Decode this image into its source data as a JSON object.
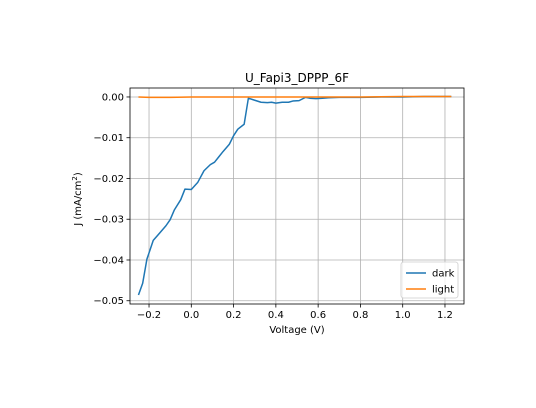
{
  "chart_data": {
    "type": "line",
    "title": "U_Fapi3_DPPP_6F",
    "xlabel": "Voltage (V)",
    "ylabel_main": "J (mA/cm",
    "ylabel_sup": "2",
    "ylabel_end": ")",
    "xlim": [
      -0.29,
      1.29
    ],
    "ylim": [
      -0.0508,
      0.0022
    ],
    "x_ticks": [
      -0.2,
      0.0,
      0.2,
      0.4,
      0.6,
      0.8,
      1.0,
      1.2
    ],
    "x_tick_labels": [
      "−0.2",
      "0.0",
      "0.2",
      "0.4",
      "0.6",
      "0.8",
      "1.0",
      "1.2"
    ],
    "y_ticks": [
      0.0,
      -0.01,
      -0.02,
      -0.03,
      -0.04,
      -0.05
    ],
    "y_tick_labels": [
      "0.00",
      "−0.01",
      "−0.02",
      "−0.03",
      "−0.04",
      "−0.05"
    ],
    "grid": true,
    "legend_position": "bottom-right",
    "series": [
      {
        "name": "dark",
        "color": "#1f77b4",
        "points": [
          [
            -0.25,
            -0.0486
          ],
          [
            -0.23,
            -0.0457
          ],
          [
            -0.21,
            -0.0398
          ],
          [
            -0.18,
            -0.0352
          ],
          [
            -0.15,
            -0.0334
          ],
          [
            -0.12,
            -0.0316
          ],
          [
            -0.1,
            -0.0301
          ],
          [
            -0.08,
            -0.0277
          ],
          [
            -0.05,
            -0.0252
          ],
          [
            -0.03,
            -0.0226
          ],
          [
            0.0,
            -0.0227
          ],
          [
            0.03,
            -0.021
          ],
          [
            0.06,
            -0.0181
          ],
          [
            0.09,
            -0.0166
          ],
          [
            0.11,
            -0.016
          ],
          [
            0.13,
            -0.0147
          ],
          [
            0.15,
            -0.0134
          ],
          [
            0.18,
            -0.0116
          ],
          [
            0.2,
            -0.0095
          ],
          [
            0.22,
            -0.0079
          ],
          [
            0.25,
            -0.0067
          ],
          [
            0.27,
            -0.0003
          ],
          [
            0.3,
            -0.0008
          ],
          [
            0.33,
            -0.0013
          ],
          [
            0.36,
            -0.0014
          ],
          [
            0.38,
            -0.0013
          ],
          [
            0.4,
            -0.0015
          ],
          [
            0.43,
            -0.0013
          ],
          [
            0.46,
            -0.0013
          ],
          [
            0.48,
            -0.001
          ],
          [
            0.51,
            -0.0009
          ],
          [
            0.54,
            -0.0001
          ],
          [
            0.56,
            -0.0003
          ],
          [
            0.59,
            -0.0004
          ],
          [
            0.62,
            -0.0003
          ],
          [
            0.65,
            -0.0002
          ],
          [
            0.7,
            -0.0001
          ],
          [
            0.8,
            -0.0001
          ],
          [
            0.9,
            0.0
          ],
          [
            1.0,
            0.0
          ],
          [
            1.1,
            0.0001
          ],
          [
            1.23,
            0.0001
          ]
        ]
      },
      {
        "name": "light",
        "color": "#ff7f0e",
        "points": [
          [
            -0.25,
            0.0
          ],
          [
            -0.2,
            -0.0001
          ],
          [
            -0.1,
            -0.0001
          ],
          [
            0.0,
            0.0
          ],
          [
            0.2,
            0.0
          ],
          [
            0.4,
            0.0
          ],
          [
            0.6,
            0.0
          ],
          [
            0.8,
            0.0
          ],
          [
            1.0,
            0.0001
          ],
          [
            1.23,
            0.0001
          ]
        ]
      }
    ]
  }
}
